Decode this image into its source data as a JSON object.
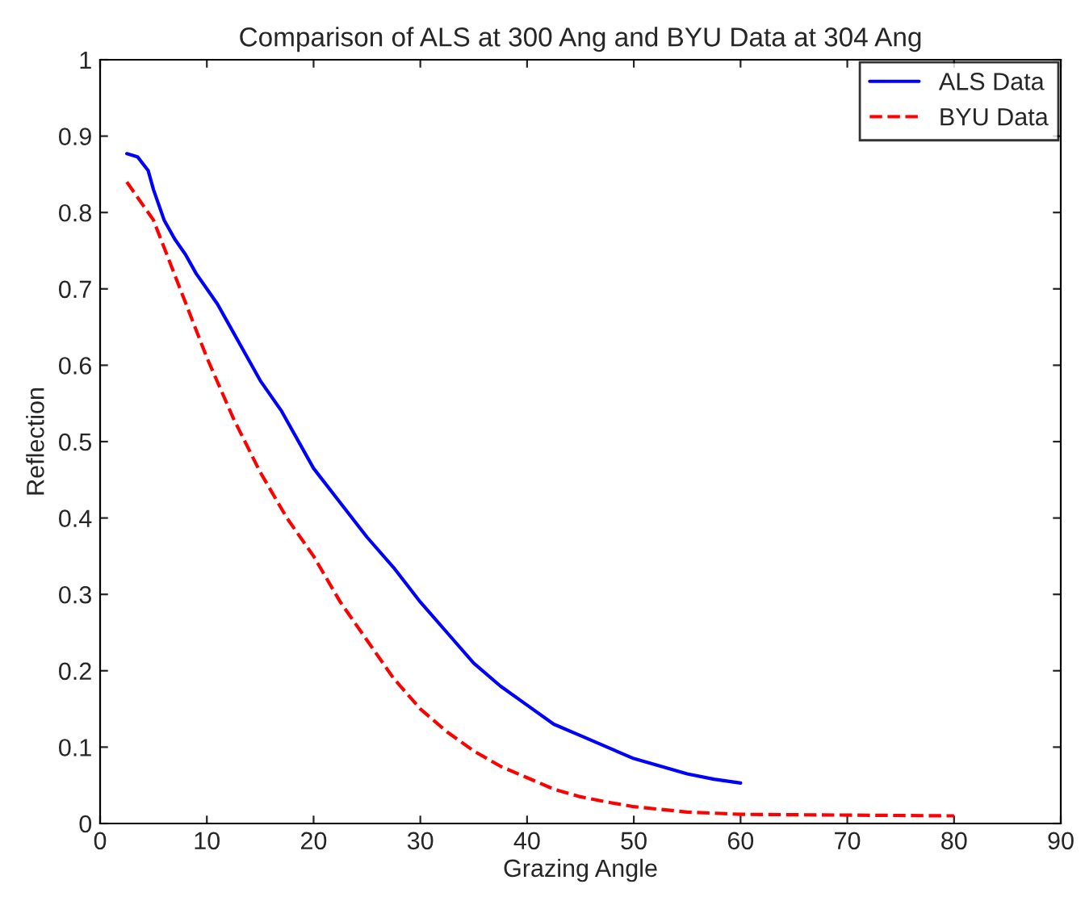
{
  "chart_data": {
    "type": "line",
    "title": "Comparison of ALS at 300 Ang and BYU Data at 304 Ang",
    "xlabel": "Grazing Angle",
    "ylabel": "Reflection",
    "xlim": [
      0,
      90
    ],
    "xticks": [
      0,
      10,
      20,
      30,
      40,
      50,
      60,
      70,
      80,
      90
    ],
    "ylim": [
      0,
      1
    ],
    "yticks": [
      0,
      0.1,
      0.2,
      0.3,
      0.4,
      0.5,
      0.6,
      0.7,
      0.8,
      0.9,
      1
    ],
    "grid": false,
    "legend": "top right",
    "marker": "none",
    "series": [
      {
        "name": "ALS Data",
        "color": "#0000ff",
        "line_style": "solid",
        "x": [
          2.5,
          3.5,
          4.5,
          5,
          6,
          7,
          8,
          9,
          10,
          11,
          12,
          13,
          15,
          17,
          20,
          22.5,
          25,
          27.5,
          30,
          32.5,
          35,
          37.5,
          40,
          42.5,
          45,
          47.5,
          50,
          52.5,
          55,
          57.5,
          60
        ],
        "values": [
          0.877,
          0.873,
          0.855,
          0.83,
          0.79,
          0.765,
          0.745,
          0.72,
          0.7,
          0.68,
          0.655,
          0.63,
          0.58,
          0.54,
          0.465,
          0.42,
          0.375,
          0.335,
          0.29,
          0.25,
          0.21,
          0.18,
          0.155,
          0.13,
          0.115,
          0.1,
          0.085,
          0.075,
          0.065,
          0.058,
          0.053
        ]
      },
      {
        "name": "BYU Data",
        "color": "#ff0000",
        "line_style": "dashed",
        "x": [
          2.5,
          5,
          7.5,
          10,
          12.5,
          15,
          17.5,
          20,
          22.5,
          25,
          27.5,
          30,
          32.5,
          35,
          37.5,
          40,
          42.5,
          45,
          47.5,
          50,
          55,
          60,
          70,
          80
        ],
        "values": [
          0.84,
          0.79,
          0.7,
          0.61,
          0.53,
          0.46,
          0.4,
          0.35,
          0.29,
          0.24,
          0.19,
          0.15,
          0.12,
          0.095,
          0.075,
          0.06,
          0.045,
          0.035,
          0.028,
          0.022,
          0.015,
          0.012,
          0.011,
          0.01
        ]
      }
    ]
  }
}
